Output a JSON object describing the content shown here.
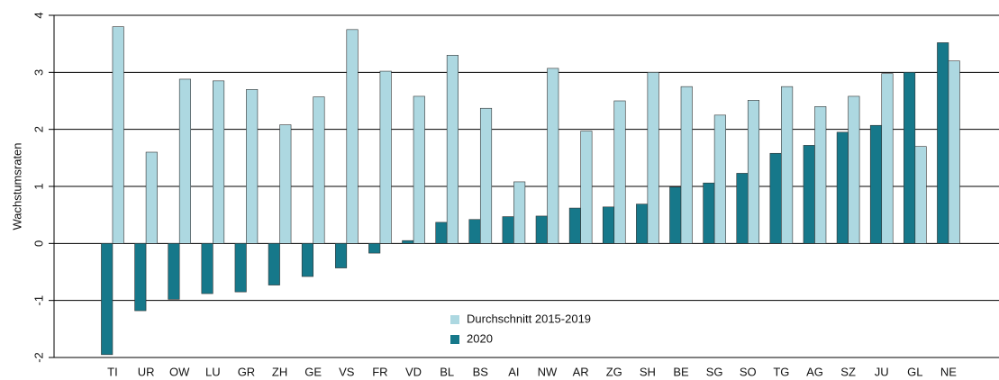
{
  "chart_data": {
    "type": "bar",
    "y_label": "Wachstumsraten",
    "categories": [
      "TI",
      "UR",
      "OW",
      "LU",
      "GR",
      "ZH",
      "GE",
      "VS",
      "FR",
      "VD",
      "BL",
      "BS",
      "AI",
      "NW",
      "AR",
      "ZG",
      "SH",
      "BE",
      "SG",
      "SO",
      "TG",
      "AG",
      "SZ",
      "JU",
      "GL",
      "NE"
    ],
    "series": [
      {
        "name": "2020",
        "color": "#16788a",
        "values": [
          -1.95,
          -1.18,
          -0.98,
          -0.88,
          -0.85,
          -0.73,
          -0.58,
          -0.43,
          -0.17,
          0.05,
          0.37,
          0.42,
          0.47,
          0.48,
          0.62,
          0.64,
          0.69,
          0.99,
          1.06,
          1.23,
          1.58,
          1.72,
          1.95,
          2.07,
          3.0,
          3.52
        ]
      },
      {
        "name": "Durchschnitt 2015-2019",
        "color": "#add8e1",
        "values": [
          3.8,
          1.6,
          2.88,
          2.85,
          2.7,
          2.08,
          2.57,
          3.75,
          3.02,
          2.58,
          3.3,
          2.37,
          1.08,
          3.07,
          1.97,
          2.5,
          3.0,
          2.75,
          2.25,
          2.51,
          2.75,
          2.4,
          2.58,
          2.98,
          1.7,
          3.2
        ]
      }
    ],
    "ylim": [
      -2,
      4
    ],
    "yticks": [
      -2,
      -1,
      0,
      1,
      2,
      3,
      4
    ],
    "grid": true
  }
}
